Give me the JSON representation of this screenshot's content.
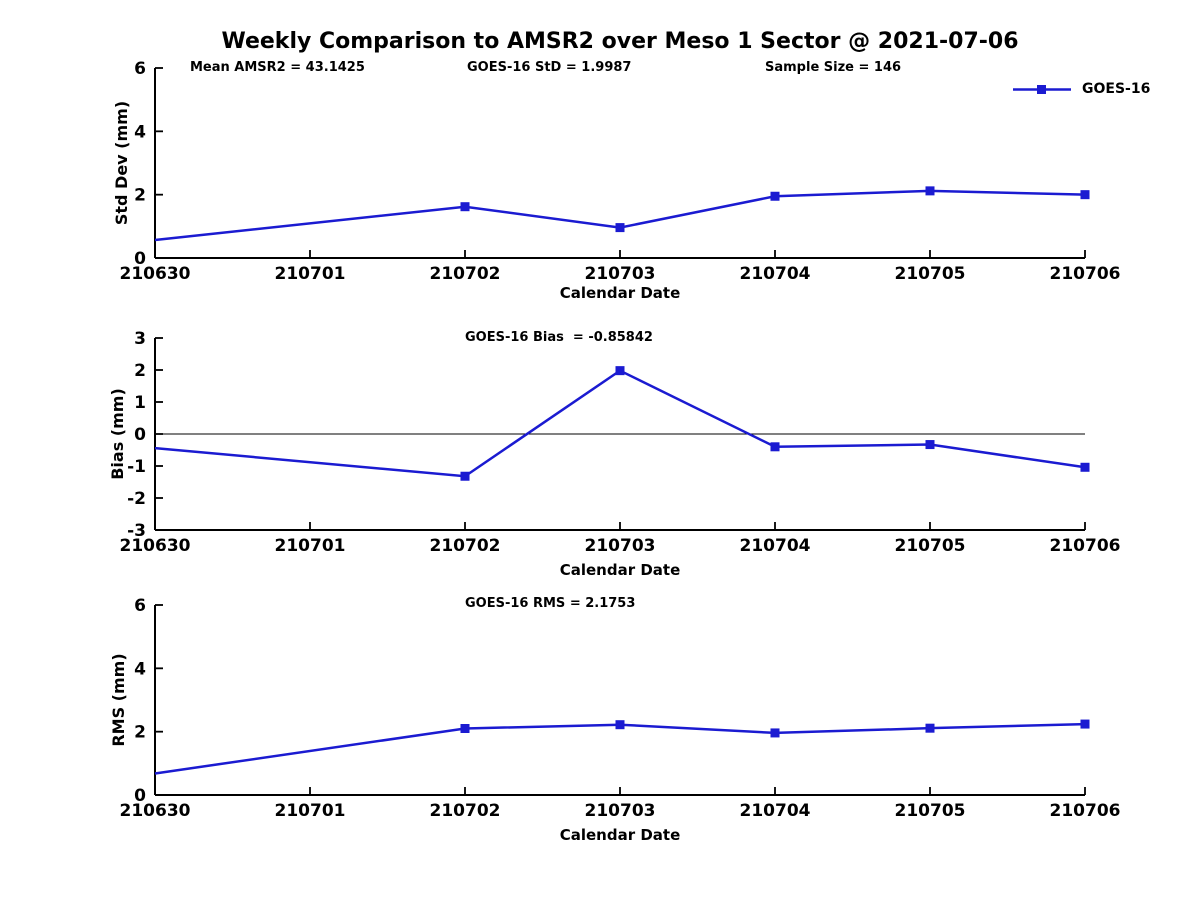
{
  "title": "Weekly Comparison to AMSR2 over Meso 1 Sector @ 2021-07-06",
  "legend": {
    "label": "GOES-16"
  },
  "colors": {
    "line": "#1b1bd1",
    "axis": "#000000",
    "zero_line": "#000000",
    "text": "#000000",
    "background": "#ffffff"
  },
  "chart_data": [
    {
      "type": "line",
      "name": "std-dev",
      "ylabel": "Std Dev (mm)",
      "xlabel": "Calendar Date",
      "ylim": [
        0,
        6
      ],
      "yticks": [
        0,
        2,
        4,
        6
      ],
      "x_tick_labels": [
        "210630",
        "210701",
        "210702",
        "210703",
        "210704",
        "210705",
        "210706"
      ],
      "annotations": [
        "Mean AMSR2 = 43.1425",
        "GOES-16 StD = 1.9987",
        "Sample Size = 146"
      ],
      "zero_line": false,
      "grid": false,
      "legend_position": "top-right",
      "series": [
        {
          "name": "GOES-16",
          "x": [
            "210630",
            "210702",
            "210703",
            "210704",
            "210705",
            "210706"
          ],
          "values": [
            0.57,
            1.62,
            0.96,
            1.95,
            2.12,
            2.0
          ]
        }
      ]
    },
    {
      "type": "line",
      "name": "bias",
      "ylabel": "Bias (mm)",
      "xlabel": "Calendar Date",
      "ylim": [
        -3,
        3
      ],
      "yticks": [
        -3,
        -2,
        -1,
        0,
        1,
        2,
        3
      ],
      "x_tick_labels": [
        "210630",
        "210701",
        "210702",
        "210703",
        "210704",
        "210705",
        "210706"
      ],
      "annotations": [
        "GOES-16 Bias  = -0.85842"
      ],
      "zero_line": true,
      "grid": false,
      "series": [
        {
          "name": "GOES-16",
          "x": [
            "210630",
            "210702",
            "210703",
            "210704",
            "210705",
            "210706"
          ],
          "values": [
            -0.44,
            -1.32,
            1.98,
            -0.4,
            -0.33,
            -1.04
          ]
        }
      ]
    },
    {
      "type": "line",
      "name": "rms",
      "ylabel": "RMS (mm)",
      "xlabel": "Calendar Date",
      "ylim": [
        0,
        6
      ],
      "yticks": [
        0,
        2,
        4,
        6
      ],
      "x_tick_labels": [
        "210630",
        "210701",
        "210702",
        "210703",
        "210704",
        "210705",
        "210706"
      ],
      "annotations": [
        "GOES-16 RMS = 2.1753"
      ],
      "zero_line": false,
      "grid": false,
      "series": [
        {
          "name": "GOES-16",
          "x": [
            "210630",
            "210702",
            "210703",
            "210704",
            "210705",
            "210706"
          ],
          "values": [
            0.68,
            2.1,
            2.22,
            1.96,
            2.11,
            2.24
          ]
        }
      ]
    }
  ]
}
